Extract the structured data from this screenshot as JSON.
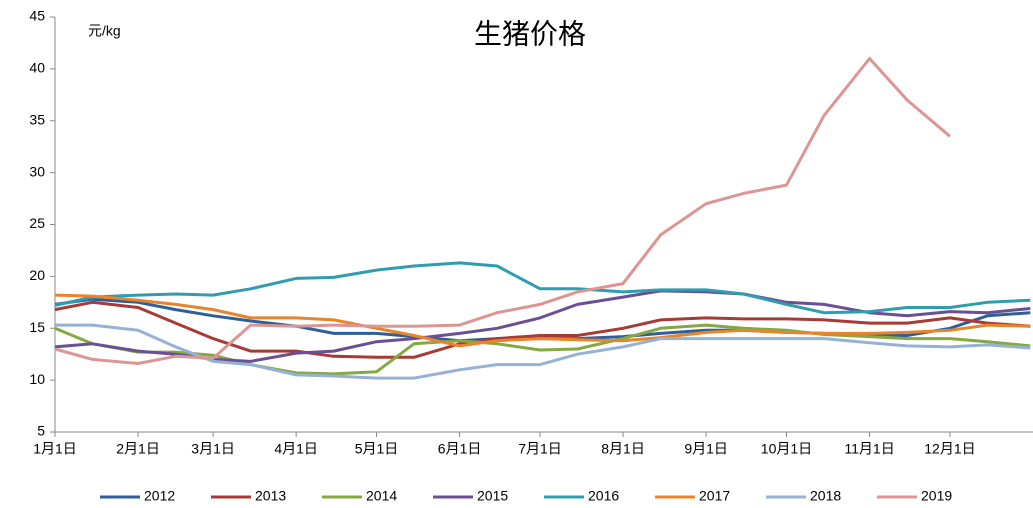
{
  "chart_data": {
    "type": "line",
    "title": "生猪价格",
    "y_label": "元/kg",
    "x": [
      1,
      15,
      32,
      46,
      60,
      74,
      91,
      105,
      121,
      135,
      152,
      166,
      182,
      196,
      213,
      227,
      244,
      258,
      274,
      288,
      305,
      319,
      335,
      349,
      365
    ],
    "xlim": [
      1,
      366
    ],
    "xticks": [
      {
        "value": 1,
        "label": "1月1日"
      },
      {
        "value": 32,
        "label": "2月1日"
      },
      {
        "value": 60,
        "label": "3月1日"
      },
      {
        "value": 91,
        "label": "4月1日"
      },
      {
        "value": 121,
        "label": "5月1日"
      },
      {
        "value": 152,
        "label": "6月1日"
      },
      {
        "value": 182,
        "label": "7月1日"
      },
      {
        "value": 213,
        "label": "8月1日"
      },
      {
        "value": 244,
        "label": "9月1日"
      },
      {
        "value": 274,
        "label": "10月1日"
      },
      {
        "value": 305,
        "label": "11月1日"
      },
      {
        "value": 335,
        "label": "12月1日"
      }
    ],
    "ylim": [
      5,
      45
    ],
    "yticks": [
      5,
      10,
      15,
      20,
      25,
      30,
      35,
      40,
      45
    ],
    "legend": "bottom",
    "series": [
      {
        "name": "2012",
        "color": "#2e5f9a",
        "values": [
          17.3,
          17.8,
          17.5,
          16.8,
          16.2,
          15.7,
          15.2,
          14.5,
          14.5,
          14.2,
          13.8,
          14.0,
          14.0,
          14.0,
          14.2,
          14.5,
          14.8,
          14.8,
          14.6,
          14.5,
          14.3,
          14.3,
          15.0,
          16.2,
          16.5
        ]
      },
      {
        "name": "2013",
        "color": "#a83a36",
        "values": [
          16.8,
          17.5,
          17.0,
          15.5,
          14.0,
          12.8,
          12.8,
          12.3,
          12.2,
          12.2,
          13.5,
          14.0,
          14.3,
          14.3,
          15.0,
          15.8,
          16.0,
          15.9,
          15.9,
          15.8,
          15.5,
          15.5,
          16.0,
          15.5,
          15.2
        ]
      },
      {
        "name": "2014",
        "color": "#86a843",
        "values": [
          15.0,
          13.5,
          12.7,
          12.7,
          12.4,
          11.5,
          10.7,
          10.6,
          10.8,
          13.5,
          13.8,
          13.5,
          12.9,
          13.0,
          14.0,
          15.0,
          15.3,
          15.0,
          14.8,
          14.4,
          14.2,
          14.0,
          14.0,
          13.7,
          13.3
        ]
      },
      {
        "name": "2015",
        "color": "#6b4f93",
        "values": [
          13.2,
          13.5,
          12.8,
          12.5,
          12.0,
          11.8,
          12.6,
          12.8,
          13.7,
          14.0,
          14.5,
          15.0,
          16.0,
          17.3,
          18.0,
          18.6,
          18.5,
          18.3,
          17.5,
          17.3,
          16.5,
          16.2,
          16.6,
          16.5,
          16.9
        ]
      },
      {
        "name": "2016",
        "color": "#2f9cb0",
        "values": [
          17.2,
          18.0,
          18.2,
          18.3,
          18.2,
          18.8,
          19.8,
          19.9,
          20.6,
          21.0,
          21.3,
          21.0,
          18.8,
          18.8,
          18.5,
          18.7,
          18.7,
          18.3,
          17.3,
          16.5,
          16.6,
          17.0,
          17.0,
          17.5,
          17.7
        ]
      },
      {
        "name": "2017",
        "color": "#e8842c",
        "values": [
          18.2,
          18.1,
          17.7,
          17.3,
          16.8,
          16.0,
          16.0,
          15.8,
          15.0,
          14.3,
          13.3,
          13.8,
          14.0,
          13.9,
          13.8,
          14.1,
          14.6,
          14.8,
          14.6,
          14.5,
          14.5,
          14.6,
          14.8,
          15.3,
          15.2
        ]
      },
      {
        "name": "2018",
        "color": "#95b2d6",
        "values": [
          15.3,
          15.3,
          14.8,
          13.2,
          11.8,
          11.5,
          10.5,
          10.4,
          10.2,
          10.2,
          11.0,
          11.5,
          11.5,
          12.5,
          13.2,
          14.0,
          14.0,
          14.0,
          14.0,
          14.0,
          13.6,
          13.3,
          13.2,
          13.4,
          13.1
        ]
      },
      {
        "name": "2019",
        "color": "#dc9593",
        "values": [
          13.0,
          12.0,
          11.6,
          12.3,
          12.1,
          15.3,
          15.2,
          15.3,
          15.2,
          15.2,
          15.3,
          16.5,
          17.3,
          18.5,
          19.3,
          24.0,
          27.0,
          28.0,
          28.8,
          35.5,
          41.0,
          37.0,
          33.5,
          null,
          null
        ]
      }
    ]
  }
}
